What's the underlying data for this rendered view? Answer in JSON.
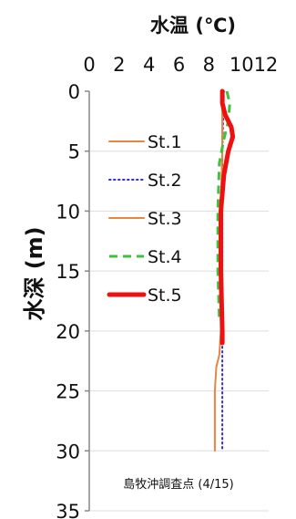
{
  "chart_data": {
    "type": "line",
    "title": "水温 (℃)",
    "ylabel": "水深 (m)",
    "annotation": "島牧沖調査点 (4/15)",
    "x_axis": {
      "position": "top",
      "range": [
        0,
        12
      ],
      "ticks": [
        "0",
        "2",
        "4",
        "6",
        "8",
        "1012"
      ]
    },
    "y_axis": {
      "range": [
        0,
        35
      ],
      "inverted": true,
      "ticks": [
        "0",
        "5",
        "10",
        "15",
        "20",
        "25",
        "30",
        "35"
      ]
    },
    "grid": "horizontal",
    "legend_position": "upper-left",
    "series": [
      {
        "name": "St.1",
        "color": "#e8853f",
        "style": "solid",
        "points": [
          [
            8.9,
            0
          ],
          [
            8.9,
            5
          ],
          [
            8.8,
            10
          ],
          [
            8.8,
            15
          ],
          [
            8.8,
            20
          ],
          [
            8.7,
            22
          ],
          [
            8.5,
            23
          ],
          [
            8.4,
            25
          ],
          [
            8.4,
            30
          ]
        ]
      },
      {
        "name": "St.2",
        "color": "#3030d0",
        "style": "dotted",
        "points": [
          [
            9.0,
            0
          ],
          [
            8.9,
            5
          ],
          [
            8.9,
            10
          ],
          [
            8.9,
            15
          ],
          [
            8.9,
            20
          ],
          [
            8.9,
            25
          ],
          [
            8.9,
            30
          ]
        ]
      },
      {
        "name": "St.3",
        "color": "#e8853f",
        "style": "solid",
        "points": [
          [
            8.9,
            0
          ],
          [
            8.9,
            5
          ],
          [
            8.8,
            10
          ],
          [
            8.8,
            15
          ],
          [
            8.8,
            21
          ]
        ]
      },
      {
        "name": "St.4",
        "color": "#40c040",
        "style": "dashed",
        "points": [
          [
            9.2,
            0
          ],
          [
            9.4,
            1
          ],
          [
            9.3,
            2.5
          ],
          [
            9.0,
            4
          ],
          [
            8.7,
            6
          ],
          [
            8.6,
            10
          ],
          [
            8.6,
            15
          ],
          [
            8.7,
            19
          ]
        ]
      },
      {
        "name": "St.5",
        "color": "#ee1111",
        "style": "thick",
        "points": [
          [
            8.9,
            0
          ],
          [
            8.9,
            1
          ],
          [
            9.1,
            2
          ],
          [
            9.5,
            3
          ],
          [
            9.6,
            3.8
          ],
          [
            9.3,
            5
          ],
          [
            9.0,
            7
          ],
          [
            8.8,
            10
          ],
          [
            8.8,
            15
          ],
          [
            8.9,
            20
          ],
          [
            8.9,
            21
          ]
        ]
      }
    ]
  }
}
